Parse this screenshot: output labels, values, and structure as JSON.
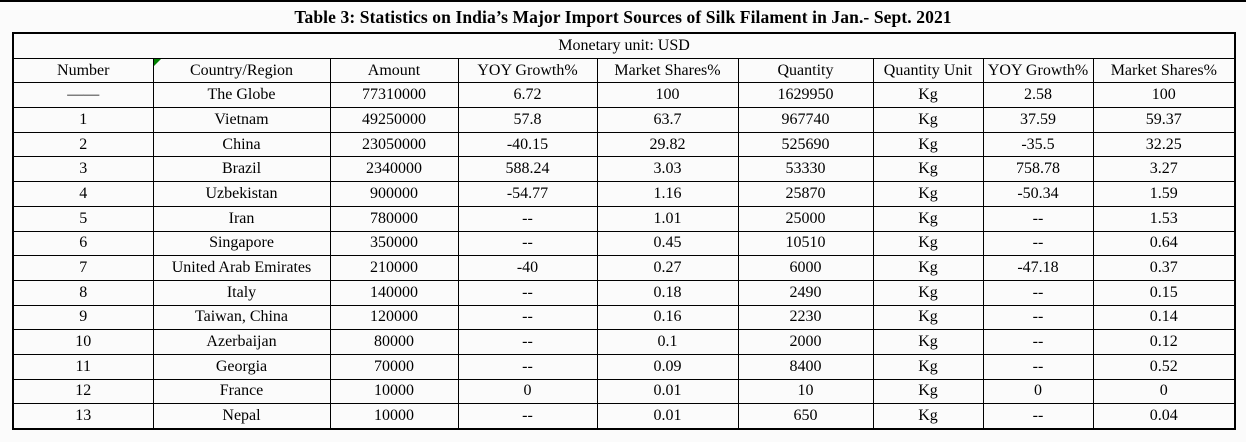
{
  "accents": {
    "flag_color": "#008000",
    "border_color": "#000000"
  },
  "chart_data": {
    "type": "table",
    "title": "Table 3: Statistics on India’s Major Import Sources of Silk Filament in Jan.- Sept. 2021",
    "unit_note": "Monetary unit: USD",
    "columns": [
      "Number",
      "Country/Region",
      "Amount",
      "YOY Growth%",
      "Market Shares%",
      "Quantity",
      "Quantity Unit",
      "YOY Growth%",
      "Market Shares%"
    ],
    "rows": [
      [
        "——",
        "The Globe",
        "77310000",
        "6.72",
        "100",
        "1629950",
        "Kg",
        "2.58",
        "100"
      ],
      [
        "1",
        "Vietnam",
        "49250000",
        "57.8",
        "63.7",
        "967740",
        "Kg",
        "37.59",
        "59.37"
      ],
      [
        "2",
        "China",
        "23050000",
        "-40.15",
        "29.82",
        "525690",
        "Kg",
        "-35.5",
        "32.25"
      ],
      [
        "3",
        "Brazil",
        "2340000",
        "588.24",
        "3.03",
        "53330",
        "Kg",
        "758.78",
        "3.27"
      ],
      [
        "4",
        "Uzbekistan",
        "900000",
        "-54.77",
        "1.16",
        "25870",
        "Kg",
        "-50.34",
        "1.59"
      ],
      [
        "5",
        "Iran",
        "780000",
        "--",
        "1.01",
        "25000",
        "Kg",
        "--",
        "1.53"
      ],
      [
        "6",
        "Singapore",
        "350000",
        "--",
        "0.45",
        "10510",
        "Kg",
        "--",
        "0.64"
      ],
      [
        "7",
        "United Arab Emirates",
        "210000",
        "-40",
        "0.27",
        "6000",
        "Kg",
        "-47.18",
        "0.37"
      ],
      [
        "8",
        "Italy",
        "140000",
        "--",
        "0.18",
        "2490",
        "Kg",
        "--",
        "0.15"
      ],
      [
        "9",
        "Taiwan, China",
        "120000",
        "--",
        "0.16",
        "2230",
        "Kg",
        "--",
        "0.14"
      ],
      [
        "10",
        "Azerbaijan",
        "80000",
        "--",
        "0.1",
        "2000",
        "Kg",
        "--",
        "0.12"
      ],
      [
        "11",
        "Georgia",
        "70000",
        "--",
        "0.09",
        "8400",
        "Kg",
        "--",
        "0.52"
      ],
      [
        "12",
        "France",
        "10000",
        "0",
        "0.01",
        "10",
        "Kg",
        "0",
        "0"
      ],
      [
        "13",
        "Nepal",
        "10000",
        "--",
        "0.01",
        "650",
        "Kg",
        "--",
        "0.04"
      ]
    ]
  }
}
